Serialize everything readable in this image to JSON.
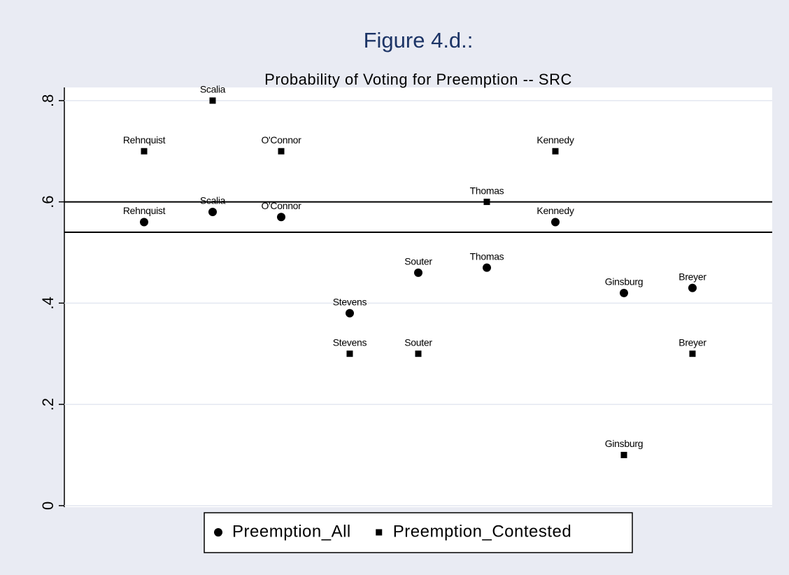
{
  "chart_data": {
    "type": "scatter",
    "title": "Figure 4.d.:",
    "subtitle": "Probability of Voting for Preemption -- SRC",
    "categories": [
      "Rehnquist",
      "Scalia",
      "O'Connor",
      "Stevens",
      "Souter",
      "Thomas",
      "Kennedy",
      "Ginsburg",
      "Breyer"
    ],
    "series": [
      {
        "name": "Preemption_All",
        "color": "#000000",
        "marker": "circle",
        "values": [
          0.56,
          0.58,
          0.57,
          0.38,
          0.46,
          0.47,
          0.56,
          0.42,
          0.43
        ]
      },
      {
        "name": "Preemption_Contested",
        "color": "#000000",
        "marker": "square",
        "values": [
          0.7,
          0.8,
          0.7,
          0.3,
          0.3,
          0.6,
          0.7,
          0.1,
          0.3
        ]
      }
    ],
    "reference_lines": [
      0.6,
      0.54
    ],
    "ylim": [
      -0.003,
      0.826
    ],
    "yticks": [
      0,
      {
        "value": 0.2,
        "label": ".2"
      },
      {
        "value": 0.4,
        "label": ".4"
      },
      {
        "value": 0.6,
        "label": ".6"
      },
      {
        "value": 0.8,
        "label": ".8"
      }
    ],
    "grid": true,
    "legend": "bottom"
  }
}
